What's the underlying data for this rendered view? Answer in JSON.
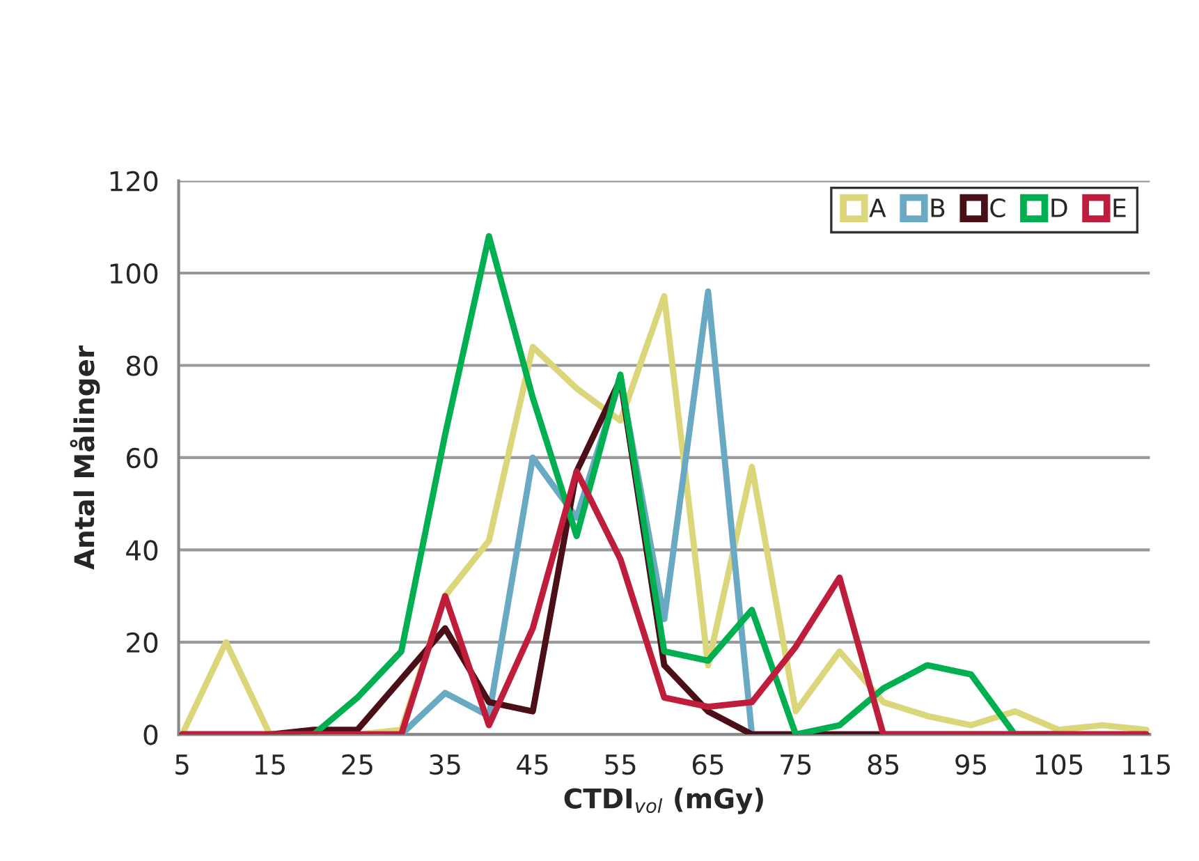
{
  "chart_data": {
    "type": "line",
    "xlabel": "CTDI$_{vol}$ (mGy)",
    "ylabel": "Antal Målinger",
    "x": [
      5,
      10,
      15,
      20,
      25,
      30,
      35,
      40,
      45,
      50,
      55,
      60,
      65,
      70,
      75,
      80,
      85,
      90,
      95,
      100,
      105,
      110,
      115
    ],
    "series": [
      {
        "name": "A",
        "color": "#dcd67a",
        "values": [
          0,
          20,
          0,
          0,
          0,
          1,
          30,
          42,
          84,
          75,
          68,
          95,
          15,
          58,
          5,
          18,
          7,
          4,
          2,
          5,
          1,
          2,
          1
        ]
      },
      {
        "name": "B",
        "color": "#6aa9c4",
        "values": [
          null,
          null,
          null,
          null,
          0,
          0,
          9,
          4,
          60,
          47,
          77,
          25,
          96,
          0,
          0,
          0,
          0,
          0,
          0,
          0,
          0,
          null,
          null
        ]
      },
      {
        "name": "C",
        "color": "#4a0f17",
        "values": [
          0,
          0,
          0,
          1,
          1,
          12,
          23,
          7,
          5,
          57,
          77,
          15,
          5,
          0,
          0,
          0,
          0,
          0,
          0,
          0,
          0,
          0,
          0
        ]
      },
      {
        "name": "D",
        "color": "#00b050",
        "values": [
          null,
          null,
          0,
          0,
          8,
          18,
          65,
          108,
          73,
          43,
          78,
          18,
          16,
          27,
          0,
          2,
          10,
          15,
          13,
          0,
          0,
          null,
          null
        ]
      },
      {
        "name": "E",
        "color": "#be1e3c",
        "values": [
          0,
          0,
          0,
          0,
          0,
          0,
          30,
          2,
          23,
          57,
          38,
          8,
          6,
          7,
          19,
          34,
          0,
          0,
          0,
          0,
          0,
          0,
          0
        ]
      }
    ],
    "xlim": [
      4.6,
      115.4
    ],
    "xticks": [
      5,
      15,
      25,
      35,
      45,
      55,
      65,
      75,
      85,
      95,
      105,
      115
    ],
    "ylim": [
      0,
      120
    ],
    "yticks": [
      0,
      20,
      40,
      60,
      80,
      100,
      120
    ],
    "grid": "y",
    "legend": "top right",
    "marker": "none",
    "line_style": "solid"
  }
}
